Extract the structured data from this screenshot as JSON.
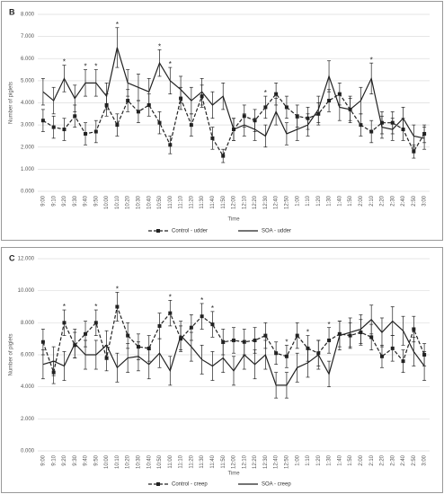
{
  "chart_data": [
    {
      "type": "line",
      "panel_label": "B",
      "ylabel": "Number of piglets",
      "xlabel": "Time",
      "categories": [
        "9:00",
        "9:10",
        "9:20",
        "9:30",
        "9:40",
        "9:50",
        "10:00",
        "10:10",
        "10:20",
        "10:30",
        "10:40",
        "10:50",
        "11:00",
        "11:10",
        "11:20",
        "11:30",
        "11:40",
        "11:50",
        "12:00",
        "12:10",
        "12:20",
        "12:30",
        "12:40",
        "12:50",
        "1:00",
        "1:10",
        "1:20",
        "1:30",
        "1:40",
        "1:50",
        "2:00",
        "2:10",
        "2:20",
        "2:30",
        "2:40",
        "2:50",
        "3:00"
      ],
      "series": [
        {
          "name": "Control - udder",
          "color": "#222222",
          "dashed": true,
          "marker": "square",
          "values": [
            3.2,
            2.9,
            2.8,
            3.4,
            2.6,
            2.7,
            3.9,
            3.0,
            4.1,
            3.6,
            3.9,
            3.1,
            2.1,
            4.2,
            3.0,
            4.3,
            2.4,
            1.6,
            2.8,
            3.4,
            3.2,
            3.8,
            4.4,
            3.8,
            3.4,
            3.3,
            3.5,
            4.1,
            4.4,
            3.7,
            3.0,
            2.7,
            3.1,
            3.1,
            2.8,
            1.8,
            2.6
          ],
          "errors": [
            0.5,
            0.5,
            0.5,
            0.5,
            0.5,
            0.5,
            0.5,
            0.5,
            0.5,
            0.5,
            0.5,
            0.5,
            0.4,
            0.5,
            0.5,
            0.5,
            0.5,
            0.3,
            0.5,
            0.5,
            0.5,
            0.5,
            0.5,
            0.5,
            0.5,
            0.5,
            0.5,
            0.5,
            0.5,
            0.5,
            0.5,
            0.5,
            0.5,
            0.5,
            0.5,
            0.3,
            0.4
          ]
        },
        {
          "name": "SOA - udder",
          "color": "#222222",
          "dashed": false,
          "marker": "none",
          "values": [
            4.5,
            4.1,
            5.1,
            4.2,
            4.9,
            4.9,
            4.3,
            6.5,
            4.9,
            4.7,
            4.5,
            5.8,
            5.0,
            4.6,
            4.1,
            4.5,
            3.9,
            4.3,
            2.8,
            3.0,
            2.8,
            2.5,
            3.6,
            2.6,
            2.8,
            3.0,
            3.7,
            5.2,
            3.8,
            3.7,
            4.1,
            5.1,
            2.9,
            2.8,
            3.3,
            2.5,
            2.4
          ],
          "errors": [
            0.6,
            0.6,
            0.6,
            0.6,
            0.6,
            0.6,
            0.6,
            0.9,
            0.6,
            0.6,
            0.6,
            0.6,
            0.6,
            0.6,
            0.6,
            0.6,
            0.6,
            0.6,
            0.5,
            0.5,
            0.5,
            0.5,
            0.6,
            0.5,
            0.5,
            0.5,
            0.6,
            0.7,
            0.6,
            0.6,
            0.6,
            0.7,
            0.5,
            0.5,
            0.5,
            0.5,
            0.5
          ]
        }
      ],
      "significance_marker": "*",
      "significance_indices": [
        2,
        4,
        5,
        7,
        11,
        12,
        21,
        31
      ],
      "ylim": [
        0,
        8
      ],
      "yticks": [
        {
          "value": 0,
          "label": "0.000"
        },
        {
          "value": 1,
          "label": "1.000"
        },
        {
          "value": 2,
          "label": "2.000"
        },
        {
          "value": 3,
          "label": "3.000"
        },
        {
          "value": 4,
          "label": "4.000"
        },
        {
          "value": 5,
          "label": "5.000"
        },
        {
          "value": 6,
          "label": "6.000"
        },
        {
          "value": 7,
          "label": "7.000"
        },
        {
          "value": 8,
          "label": "8.000"
        }
      ],
      "grid": true,
      "legend": "bottom"
    },
    {
      "type": "line",
      "panel_label": "C",
      "ylabel": "Number of piglets",
      "xlabel": "Time",
      "categories": [
        "9:00",
        "9:10",
        "9:20",
        "9:30",
        "9:40",
        "9:50",
        "10:00",
        "10:10",
        "10:20",
        "10:30",
        "10:40",
        "10:50",
        "11:00",
        "11:10",
        "11:20",
        "11:30",
        "11:40",
        "11:50",
        "12:00",
        "12:10",
        "12:20",
        "12:30",
        "12:40",
        "12:50",
        "1:00",
        "1:10",
        "1:20",
        "1:30",
        "1:40",
        "1:50",
        "2:00",
        "2:10",
        "2:20",
        "2:30",
        "2:40",
        "2:50",
        "3:00"
      ],
      "series": [
        {
          "name": "Control - creep",
          "color": "#222222",
          "dashed": true,
          "marker": "square",
          "values": [
            6.8,
            4.9,
            8.0,
            6.6,
            7.3,
            8.0,
            5.8,
            9.0,
            7.2,
            6.5,
            6.4,
            7.8,
            8.6,
            7.0,
            7.7,
            8.4,
            7.9,
            6.8,
            6.9,
            6.8,
            6.9,
            7.2,
            6.1,
            5.9,
            7.2,
            6.4,
            6.1,
            6.9,
            7.3,
            7.2,
            7.4,
            7.1,
            5.9,
            6.4,
            5.6,
            7.6,
            6.0
          ],
          "errors": [
            0.8,
            0.7,
            0.8,
            0.8,
            0.8,
            0.8,
            0.8,
            0.9,
            0.8,
            0.8,
            0.8,
            0.8,
            0.8,
            0.8,
            0.8,
            0.8,
            0.8,
            0.8,
            0.8,
            0.8,
            0.8,
            0.8,
            0.7,
            0.7,
            0.8,
            0.8,
            0.8,
            0.8,
            0.8,
            0.8,
            0.8,
            0.8,
            0.7,
            0.8,
            0.7,
            0.8,
            0.7
          ]
        },
        {
          "name": "SOA - creep",
          "color": "#222222",
          "dashed": false,
          "marker": "none",
          "values": [
            5.4,
            5.6,
            5.3,
            6.7,
            6.0,
            6.0,
            6.6,
            5.2,
            5.8,
            5.9,
            5.4,
            6.1,
            5.0,
            7.2,
            6.5,
            5.7,
            5.3,
            5.8,
            5.0,
            6.0,
            5.4,
            6.0,
            4.1,
            4.1,
            5.2,
            5.5,
            6.0,
            4.8,
            7.2,
            7.4,
            7.6,
            8.2,
            7.4,
            8.1,
            7.5,
            6.2,
            5.3
          ],
          "errors": [
            0.9,
            0.9,
            0.9,
            0.9,
            0.9,
            0.9,
            0.9,
            0.9,
            0.9,
            0.9,
            0.9,
            0.9,
            0.9,
            0.9,
            0.9,
            0.9,
            0.9,
            0.9,
            0.9,
            0.9,
            0.9,
            0.9,
            0.8,
            0.8,
            0.9,
            0.9,
            0.9,
            0.8,
            0.9,
            0.9,
            0.9,
            0.9,
            0.9,
            0.9,
            0.9,
            0.9,
            0.9
          ]
        }
      ],
      "significance_marker": "*",
      "significance_indices": [
        2,
        5,
        7,
        12,
        15,
        16,
        23,
        25,
        27
      ],
      "ylim": [
        0,
        12
      ],
      "yticks": [
        {
          "value": 0,
          "label": "0.000"
        },
        {
          "value": 2,
          "label": "2.000"
        },
        {
          "value": 4,
          "label": "4.000"
        },
        {
          "value": 6,
          "label": "6.000"
        },
        {
          "value": 8,
          "label": "8.000"
        },
        {
          "value": 10,
          "label": "10.000"
        },
        {
          "value": 12,
          "label": "12.000"
        }
      ],
      "grid": true,
      "legend": "bottom"
    }
  ]
}
